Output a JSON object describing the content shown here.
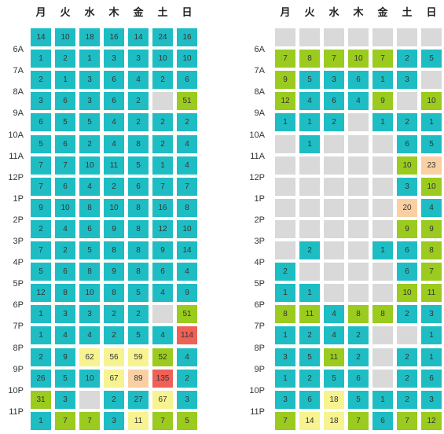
{
  "palette": {
    "empty": "#d9d9d9",
    "teal": "#1ebdc4",
    "green": "#9acb1e",
    "yellow": "#f6f390",
    "peach": "#fad0a3",
    "red": "#ef6057"
  },
  "chart_data": [
    {
      "type": "heatmap",
      "days": [
        "月",
        "火",
        "水",
        "木",
        "金",
        "土",
        "日"
      ],
      "rows": [
        {
          "hour": "",
          "values": [
            14,
            10,
            18,
            16,
            14,
            24,
            16
          ],
          "colors": [
            "teal",
            "teal",
            "teal",
            "teal",
            "teal",
            "teal",
            "teal"
          ]
        },
        {
          "hour": "6A",
          "values": [
            1,
            2,
            1,
            3,
            3,
            10,
            10
          ],
          "colors": [
            "teal",
            "teal",
            "teal",
            "teal",
            "teal",
            "teal",
            "teal"
          ]
        },
        {
          "hour": "7A",
          "values": [
            2,
            1,
            3,
            6,
            4,
            2,
            6
          ],
          "colors": [
            "teal",
            "teal",
            "teal",
            "teal",
            "teal",
            "teal",
            "teal"
          ]
        },
        {
          "hour": "8A",
          "values": [
            3,
            6,
            3,
            6,
            2,
            null,
            51
          ],
          "colors": [
            "teal",
            "teal",
            "teal",
            "teal",
            "teal",
            "empty",
            "green"
          ]
        },
        {
          "hour": "9A",
          "values": [
            6,
            5,
            5,
            4,
            2,
            2,
            2
          ],
          "colors": [
            "teal",
            "teal",
            "teal",
            "teal",
            "teal",
            "teal",
            "teal"
          ]
        },
        {
          "hour": "10A",
          "values": [
            5,
            6,
            2,
            4,
            8,
            2,
            4
          ],
          "colors": [
            "teal",
            "teal",
            "teal",
            "teal",
            "teal",
            "teal",
            "teal"
          ]
        },
        {
          "hour": "11A",
          "values": [
            7,
            7,
            10,
            11,
            5,
            1,
            4
          ],
          "colors": [
            "teal",
            "teal",
            "teal",
            "teal",
            "teal",
            "teal",
            "teal"
          ]
        },
        {
          "hour": "12P",
          "values": [
            7,
            6,
            4,
            2,
            6,
            7,
            7
          ],
          "colors": [
            "teal",
            "teal",
            "teal",
            "teal",
            "teal",
            "teal",
            "teal"
          ]
        },
        {
          "hour": "1P",
          "values": [
            9,
            10,
            8,
            10,
            8,
            16,
            8
          ],
          "colors": [
            "teal",
            "teal",
            "teal",
            "teal",
            "teal",
            "teal",
            "teal"
          ]
        },
        {
          "hour": "2P",
          "values": [
            2,
            4,
            6,
            9,
            8,
            12,
            10
          ],
          "colors": [
            "teal",
            "teal",
            "teal",
            "teal",
            "teal",
            "teal",
            "teal"
          ]
        },
        {
          "hour": "3P",
          "values": [
            7,
            2,
            5,
            8,
            8,
            9,
            14
          ],
          "colors": [
            "teal",
            "teal",
            "teal",
            "teal",
            "teal",
            "teal",
            "teal"
          ]
        },
        {
          "hour": "4P",
          "values": [
            5,
            6,
            8,
            9,
            8,
            6,
            4
          ],
          "colors": [
            "teal",
            "teal",
            "teal",
            "teal",
            "teal",
            "teal",
            "teal"
          ]
        },
        {
          "hour": "5P",
          "values": [
            12,
            8,
            10,
            8,
            5,
            4,
            9
          ],
          "colors": [
            "teal",
            "teal",
            "teal",
            "teal",
            "teal",
            "teal",
            "teal"
          ]
        },
        {
          "hour": "6P",
          "values": [
            1,
            3,
            3,
            2,
            2,
            null,
            51
          ],
          "colors": [
            "teal",
            "teal",
            "teal",
            "teal",
            "teal",
            "empty",
            "green"
          ]
        },
        {
          "hour": "7P",
          "values": [
            1,
            4,
            4,
            2,
            5,
            4,
            114
          ],
          "colors": [
            "teal",
            "teal",
            "teal",
            "teal",
            "teal",
            "teal",
            "red"
          ]
        },
        {
          "hour": "8P",
          "values": [
            2,
            9,
            62,
            56,
            59,
            52,
            4
          ],
          "colors": [
            "teal",
            "teal",
            "yellow",
            "yellow",
            "yellow",
            "green",
            "teal"
          ]
        },
        {
          "hour": "9P",
          "values": [
            26,
            5,
            10,
            67,
            89,
            135,
            2
          ],
          "colors": [
            "teal",
            "teal",
            "teal",
            "yellow",
            "peach",
            "red",
            "teal"
          ]
        },
        {
          "hour": "10P",
          "values": [
            31,
            3,
            null,
            2,
            27,
            67,
            3
          ],
          "colors": [
            "green",
            "teal",
            "empty",
            "teal",
            "teal",
            "yellow",
            "teal"
          ]
        },
        {
          "hour": "11P",
          "values": [
            1,
            7,
            7,
            3,
            11,
            7,
            5
          ],
          "colors": [
            "teal",
            "green",
            "green",
            "teal",
            "yellow",
            "green",
            "green"
          ]
        }
      ]
    },
    {
      "type": "heatmap",
      "days": [
        "月",
        "火",
        "水",
        "木",
        "金",
        "土",
        "日"
      ],
      "rows": [
        {
          "hour": "",
          "values": [
            null,
            null,
            null,
            null,
            null,
            null,
            null
          ],
          "colors": [
            "empty",
            "empty",
            "empty",
            "empty",
            "empty",
            "empty",
            "empty"
          ]
        },
        {
          "hour": "6A",
          "values": [
            7,
            8,
            7,
            10,
            7,
            2,
            5
          ],
          "colors": [
            "green",
            "green",
            "green",
            "green",
            "green",
            "teal",
            "teal"
          ]
        },
        {
          "hour": "7A",
          "values": [
            9,
            5,
            3,
            6,
            1,
            3,
            null
          ],
          "colors": [
            "green",
            "teal",
            "teal",
            "teal",
            "teal",
            "teal",
            "empty"
          ]
        },
        {
          "hour": "8A",
          "values": [
            12,
            4,
            6,
            4,
            9,
            null,
            10
          ],
          "colors": [
            "green",
            "teal",
            "teal",
            "teal",
            "green",
            "empty",
            "green"
          ]
        },
        {
          "hour": "9A",
          "values": [
            1,
            1,
            2,
            null,
            1,
            2,
            1
          ],
          "colors": [
            "teal",
            "teal",
            "teal",
            "empty",
            "teal",
            "teal",
            "teal"
          ]
        },
        {
          "hour": "10A",
          "values": [
            null,
            1,
            null,
            null,
            null,
            6,
            5
          ],
          "colors": [
            "empty",
            "teal",
            "empty",
            "empty",
            "empty",
            "teal",
            "teal"
          ]
        },
        {
          "hour": "11A",
          "values": [
            null,
            null,
            null,
            null,
            null,
            10,
            23
          ],
          "colors": [
            "empty",
            "empty",
            "empty",
            "empty",
            "empty",
            "green",
            "peach"
          ]
        },
        {
          "hour": "12P",
          "values": [
            null,
            null,
            null,
            null,
            null,
            3,
            10
          ],
          "colors": [
            "empty",
            "empty",
            "empty",
            "empty",
            "empty",
            "teal",
            "green"
          ]
        },
        {
          "hour": "1P",
          "values": [
            null,
            null,
            null,
            null,
            null,
            20,
            4
          ],
          "colors": [
            "empty",
            "empty",
            "empty",
            "empty",
            "empty",
            "peach",
            "teal"
          ]
        },
        {
          "hour": "2P",
          "values": [
            null,
            null,
            null,
            null,
            null,
            9,
            9
          ],
          "colors": [
            "empty",
            "empty",
            "empty",
            "empty",
            "empty",
            "green",
            "green"
          ]
        },
        {
          "hour": "3P",
          "values": [
            null,
            2,
            null,
            null,
            1,
            6,
            8
          ],
          "colors": [
            "empty",
            "teal",
            "empty",
            "empty",
            "teal",
            "teal",
            "green"
          ]
        },
        {
          "hour": "4P",
          "values": [
            2,
            null,
            null,
            null,
            null,
            6,
            7
          ],
          "colors": [
            "teal",
            "empty",
            "empty",
            "empty",
            "empty",
            "teal",
            "green"
          ]
        },
        {
          "hour": "5P",
          "values": [
            1,
            1,
            null,
            null,
            null,
            10,
            11
          ],
          "colors": [
            "teal",
            "teal",
            "empty",
            "empty",
            "empty",
            "green",
            "green"
          ]
        },
        {
          "hour": "6P",
          "values": [
            8,
            11,
            4,
            8,
            8,
            2,
            3
          ],
          "colors": [
            "green",
            "green",
            "teal",
            "green",
            "green",
            "teal",
            "teal"
          ]
        },
        {
          "hour": "7P",
          "values": [
            1,
            2,
            4,
            2,
            null,
            null,
            1
          ],
          "colors": [
            "teal",
            "teal",
            "teal",
            "teal",
            "empty",
            "empty",
            "teal"
          ]
        },
        {
          "hour": "8P",
          "values": [
            3,
            5,
            11,
            2,
            null,
            2,
            1
          ],
          "colors": [
            "teal",
            "teal",
            "green",
            "teal",
            "empty",
            "teal",
            "teal"
          ]
        },
        {
          "hour": "9P",
          "values": [
            1,
            2,
            5,
            6,
            null,
            2,
            6
          ],
          "colors": [
            "teal",
            "teal",
            "teal",
            "teal",
            "empty",
            "teal",
            "teal"
          ]
        },
        {
          "hour": "10P",
          "values": [
            3,
            6,
            18,
            5,
            1,
            2,
            3
          ],
          "colors": [
            "teal",
            "teal",
            "yellow",
            "teal",
            "teal",
            "teal",
            "teal"
          ]
        },
        {
          "hour": "11P",
          "values": [
            7,
            14,
            18,
            7,
            6,
            7,
            12
          ],
          "colors": [
            "green",
            "yellow",
            "yellow",
            "green",
            "teal",
            "green",
            "green"
          ]
        }
      ]
    }
  ]
}
